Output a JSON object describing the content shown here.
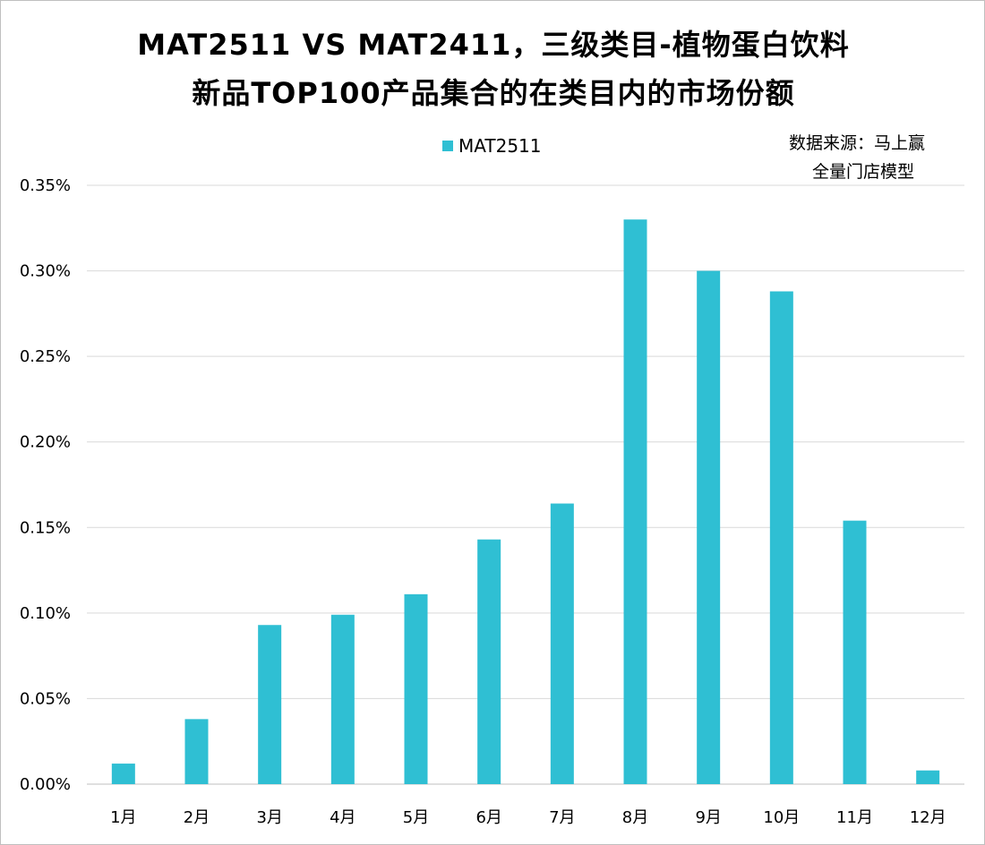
{
  "chart_data": {
    "type": "bar",
    "title": [
      "MAT2511 VS MAT2411，三级类目-植物蛋白饮料",
      "新品TOP100产品集合的在类目内的市场份额"
    ],
    "categories": [
      "1月",
      "2月",
      "3月",
      "4月",
      "5月",
      "6月",
      "7月",
      "8月",
      "9月",
      "10月",
      "11月",
      "12月"
    ],
    "series": [
      {
        "name": "MAT2511",
        "color": "#2fbfd3",
        "values": [
          0.012,
          0.038,
          0.093,
          0.099,
          0.111,
          0.143,
          0.164,
          0.33,
          0.3,
          0.288,
          0.154,
          0.008
        ]
      }
    ],
    "yticks": [
      "0.00%",
      "0.05%",
      "0.10%",
      "0.15%",
      "0.20%",
      "0.25%",
      "0.30%",
      "0.35%"
    ],
    "ylim": [
      0,
      0.35
    ],
    "yunit": "%",
    "grid": true,
    "legend_position": "top-center",
    "annotation": [
      "数据来源：马上赢",
      "全量门店模型"
    ]
  }
}
